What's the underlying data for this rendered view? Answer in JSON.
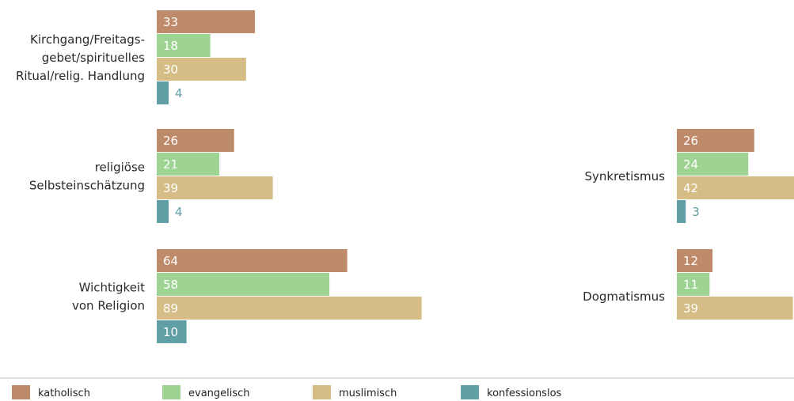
{
  "chart_data": [
    {
      "type": "bar",
      "orientation": "horizontal",
      "groups": [
        {
          "label": "Kirchgang/Freitags-\ngebet/spirituelles\nRitual/relig. Handlung",
          "values": [
            33,
            18,
            30,
            4
          ]
        },
        {
          "label": "religiöse\nSelbsteinschätzung",
          "values": [
            26,
            21,
            39,
            4
          ]
        },
        {
          "label": "Wichtigkeit\nvon Religion",
          "values": [
            64,
            58,
            89,
            10
          ]
        }
      ]
    },
    {
      "type": "bar",
      "orientation": "horizontal",
      "groups": [
        {
          "label": "Synkretismus",
          "values": [
            26,
            24,
            42,
            3
          ]
        },
        {
          "label": "Dogmatismus",
          "values": [
            12,
            11,
            39,
            null
          ]
        }
      ]
    }
  ],
  "legend": [
    {
      "name": "katholisch",
      "color": "#be8a6c"
    },
    {
      "name": "evangelisch",
      "color": "#9dd393"
    },
    {
      "name": "muslimisch",
      "color": "#d5bd85"
    },
    {
      "name": "konfessionslos",
      "color": "#5f9fa5"
    }
  ],
  "colors": {
    "value_inside": "#ffffff",
    "value_outside": "#5f9fa5",
    "category_text": "#2a2a2a",
    "separator": "#bdbdbd"
  }
}
